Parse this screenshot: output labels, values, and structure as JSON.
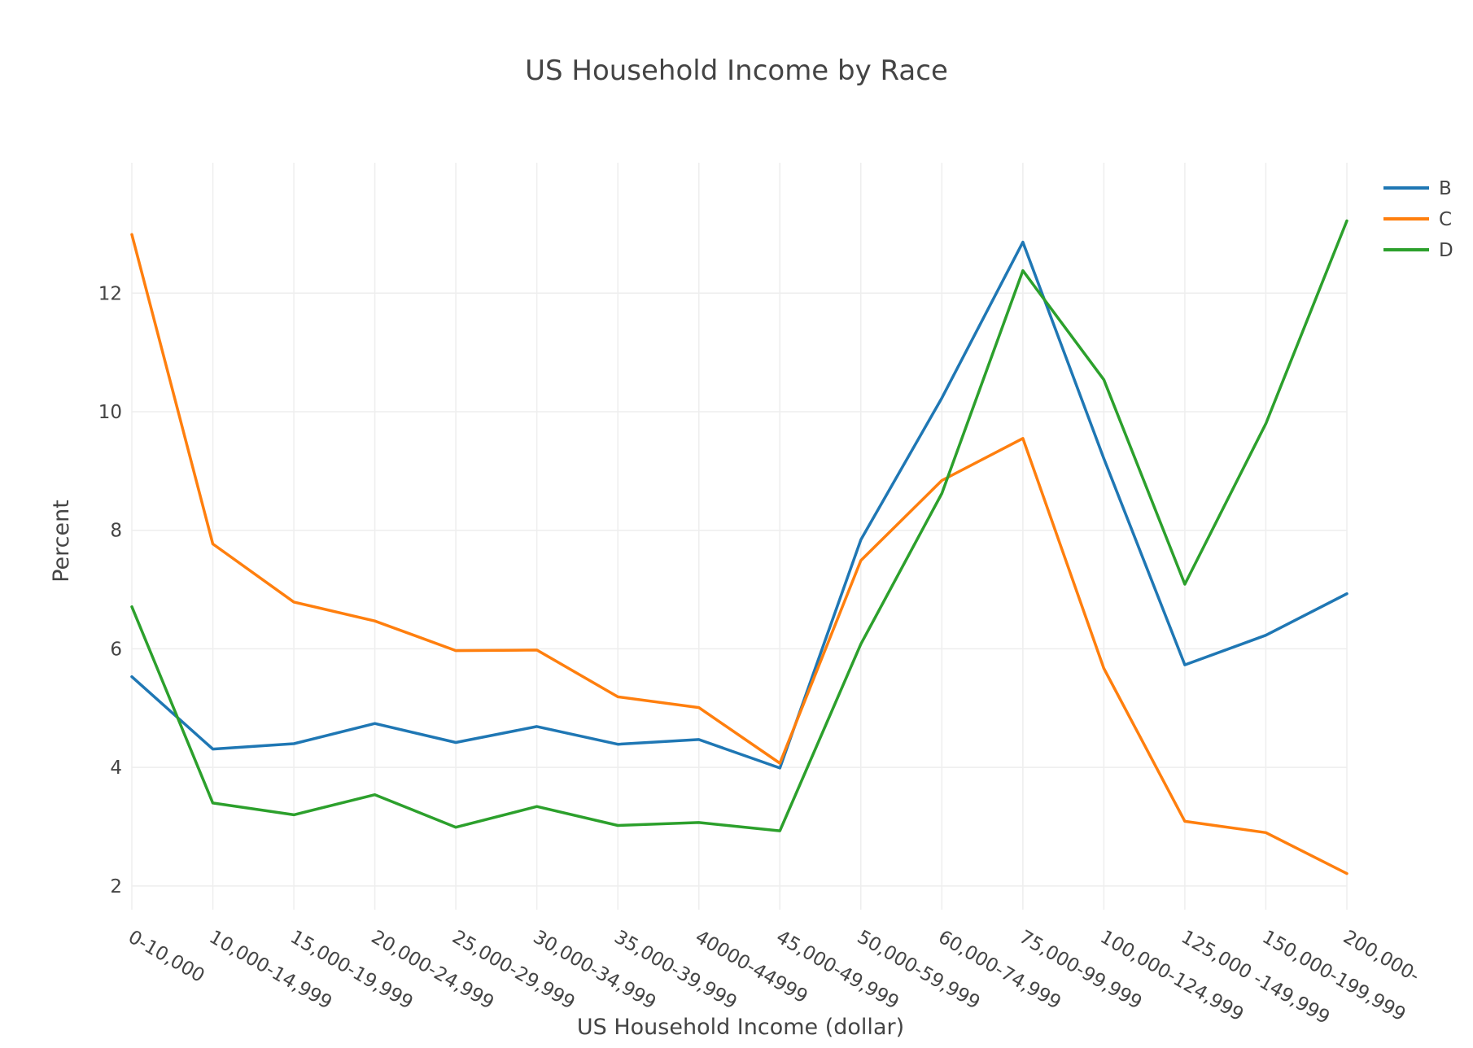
{
  "chart_data": {
    "type": "line",
    "title": "US Household Income by Race",
    "xlabel": "US Household Income (dollar)",
    "ylabel": "Percent",
    "ylim": [
      1.6,
      14.2
    ],
    "yticks": [
      2,
      4,
      6,
      8,
      10,
      12
    ],
    "grid": true,
    "legend_position": "top-right",
    "categories": [
      "0-10,000",
      "10,000-14,999",
      "15,000-19,999",
      "20,000-24,999",
      "25,000-29,999",
      "30,000-34,999",
      "35,000-39,999",
      "40000-44999",
      "45,000-49,999",
      "50,000-59,999",
      "60,000-74,999",
      "75,000-99,999",
      "100,000-124,999",
      "125,000 -149,999",
      "150,000-199,999",
      "200,000-"
    ],
    "series": [
      {
        "name": "B",
        "color": "#1f77b4",
        "values": [
          5.53,
          4.31,
          4.4,
          4.74,
          4.42,
          4.69,
          4.39,
          4.47,
          3.99,
          7.84,
          10.23,
          12.86,
          9.21,
          5.73,
          6.23,
          6.93
        ]
      },
      {
        "name": "C",
        "color": "#ff7f0e",
        "values": [
          12.99,
          7.77,
          6.79,
          6.47,
          5.97,
          5.98,
          5.19,
          5.01,
          4.07,
          7.49,
          8.84,
          9.55,
          5.67,
          3.09,
          2.9,
          2.21
        ]
      },
      {
        "name": "D",
        "color": "#2ca02c",
        "values": [
          6.71,
          3.4,
          3.2,
          3.54,
          2.99,
          3.34,
          3.02,
          3.07,
          2.93,
          6.08,
          8.62,
          12.38,
          10.54,
          7.09,
          9.8,
          13.22
        ]
      }
    ]
  }
}
